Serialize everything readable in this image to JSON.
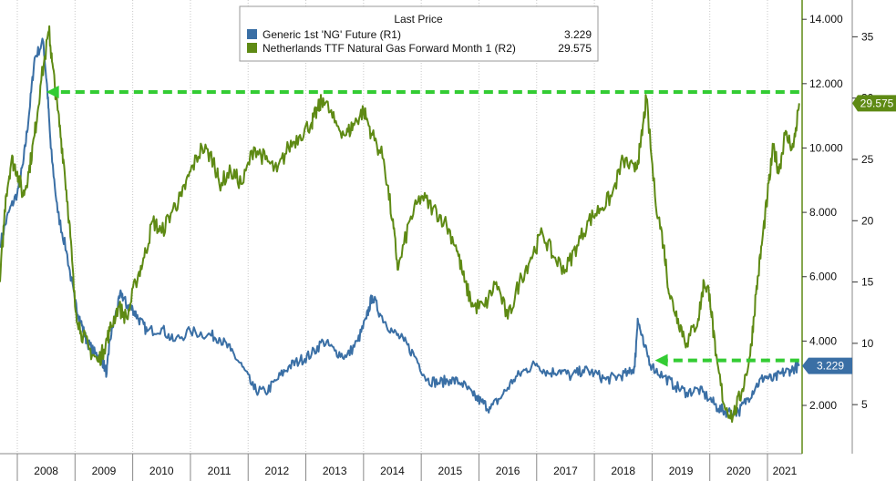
{
  "chart_data": {
    "type": "line",
    "legend": {
      "title": "Last Price",
      "placement": "top-center",
      "entries": [
        {
          "label": "Generic 1st 'NG' Future  (R1)",
          "value": "3.229"
        },
        {
          "label": "Netherlands TTF Natural Gas Forward Month 1  (R2)",
          "value": "29.575"
        }
      ]
    },
    "x_labels": [
      "2008",
      "2009",
      "2010",
      "2011",
      "2012",
      "2013",
      "2014",
      "2015",
      "2016",
      "2017",
      "2018",
      "2019",
      "2020",
      "2021"
    ],
    "x_range": [
      2007.7,
      2021.6
    ],
    "grid": "vertical-only",
    "axes": {
      "r1": {
        "range": [
          0.5,
          14.6
        ],
        "ticks": [
          "14.000",
          "12.000",
          "10.000",
          "8.000",
          "6.000",
          "4.000",
          "2.000"
        ],
        "tick_values": [
          14,
          12,
          10,
          8,
          6,
          4,
          2
        ]
      },
      "r2": {
        "range": [
          1,
          38
        ],
        "ticks": [
          "35",
          "30",
          "25",
          "20",
          "15",
          "10",
          "5"
        ],
        "tick_values": [
          35,
          30,
          25,
          20,
          15,
          10,
          5
        ]
      }
    },
    "series": [
      {
        "name": "Generic 1st 'NG' Future  (R1)",
        "axis": "r1",
        "color": "#3a6fa5",
        "last_label": "3.229",
        "x": [
          2007.7,
          2007.85,
          2008.0,
          2008.1,
          2008.2,
          2008.3,
          2008.45,
          2008.52,
          2008.58,
          2008.7,
          2008.85,
          2009.0,
          2009.1,
          2009.2,
          2009.35,
          2009.45,
          2009.55,
          2009.6,
          2009.7,
          2009.8,
          2009.9,
          2010.0,
          2010.1,
          2010.25,
          2010.5,
          2010.7,
          2011.0,
          2011.3,
          2011.5,
          2011.7,
          2011.9,
          2012.1,
          2012.3,
          2012.5,
          2012.7,
          2012.9,
          2013.1,
          2013.3,
          2013.5,
          2013.7,
          2013.9,
          2014.05,
          2014.15,
          2014.3,
          2014.5,
          2014.7,
          2014.9,
          2015.1,
          2015.3,
          2015.5,
          2015.7,
          2015.9,
          2016.05,
          2016.2,
          2016.4,
          2016.6,
          2016.8,
          2017.0,
          2017.2,
          2017.4,
          2017.6,
          2017.8,
          2018.0,
          2018.2,
          2018.4,
          2018.6,
          2018.7,
          2018.75,
          2018.85,
          2019.0,
          2019.2,
          2019.4,
          2019.6,
          2019.8,
          2020.0,
          2020.15,
          2020.3,
          2020.5,
          2020.65,
          2020.8,
          2020.95,
          2021.1,
          2021.25,
          2021.4,
          2021.55
        ],
        "values": [
          7.0,
          8.0,
          8.6,
          9.5,
          11.0,
          12.8,
          13.3,
          11.8,
          10.0,
          8.0,
          6.8,
          5.2,
          4.6,
          4.0,
          3.6,
          3.5,
          3.0,
          4.0,
          4.8,
          5.5,
          5.1,
          5.0,
          4.7,
          4.3,
          4.4,
          4.0,
          4.3,
          4.2,
          4.1,
          3.7,
          3.2,
          2.5,
          2.4,
          2.8,
          3.2,
          3.4,
          3.6,
          4.0,
          3.7,
          3.5,
          4.0,
          4.7,
          5.4,
          4.8,
          4.3,
          4.0,
          3.5,
          2.8,
          2.7,
          2.8,
          2.7,
          2.3,
          2.1,
          1.9,
          2.3,
          2.8,
          3.1,
          3.3,
          3.0,
          3.1,
          2.9,
          3.1,
          3.0,
          2.8,
          2.9,
          3.0,
          3.2,
          4.7,
          3.9,
          3.2,
          2.9,
          2.6,
          2.4,
          2.5,
          2.2,
          1.9,
          1.8,
          1.8,
          2.2,
          2.6,
          2.9,
          2.8,
          3.0,
          3.1,
          3.229
        ]
      },
      {
        "name": "Netherlands TTF Natural Gas Forward Month 1  (R2)",
        "axis": "r2",
        "color": "#5e8a14",
        "last_label": "29.575",
        "x": [
          2007.7,
          2007.8,
          2007.9,
          2008.0,
          2008.1,
          2008.2,
          2008.3,
          2008.4,
          2008.55,
          2008.6,
          2008.7,
          2008.8,
          2008.9,
          2009.0,
          2009.1,
          2009.25,
          2009.4,
          2009.5,
          2009.6,
          2009.75,
          2009.9,
          2010.05,
          2010.2,
          2010.35,
          2010.5,
          2010.7,
          2010.85,
          2011.0,
          2011.2,
          2011.4,
          2011.5,
          2011.7,
          2011.9,
          2012.1,
          2012.3,
          2012.5,
          2012.7,
          2012.9,
          2013.1,
          2013.2,
          2013.3,
          2013.5,
          2013.7,
          2013.85,
          2014.0,
          2014.15,
          2014.35,
          2014.5,
          2014.6,
          2014.8,
          2015.0,
          2015.2,
          2015.4,
          2015.6,
          2015.75,
          2015.9,
          2016.1,
          2016.3,
          2016.5,
          2016.7,
          2016.9,
          2017.1,
          2017.3,
          2017.5,
          2017.7,
          2017.9,
          2018.1,
          2018.3,
          2018.5,
          2018.7,
          2018.8,
          2018.9,
          2019.05,
          2019.2,
          2019.3,
          2019.45,
          2019.6,
          2019.8,
          2019.9,
          2020.0,
          2020.1,
          2020.25,
          2020.4,
          2020.55,
          2020.7,
          2020.8,
          2020.9,
          2021.0,
          2021.1,
          2021.2,
          2021.3,
          2021.45,
          2021.55
        ],
        "values": [
          15,
          22,
          25,
          24,
          22,
          24,
          27,
          31,
          35.5,
          33,
          29,
          25,
          20,
          13,
          11,
          9.5,
          8.5,
          9.5,
          11,
          13,
          12,
          15,
          17,
          20,
          19,
          21,
          22,
          24,
          26,
          25,
          23,
          24,
          23,
          26,
          25,
          24,
          26,
          27,
          28,
          29,
          30,
          28,
          27,
          28,
          29,
          27,
          25,
          20,
          16,
          20,
          22,
          21,
          20,
          18,
          15,
          13,
          13,
          15,
          12,
          15,
          17,
          19,
          17,
          16,
          18,
          20,
          21,
          22,
          25,
          24,
          26,
          30,
          22,
          18,
          14,
          12,
          10,
          12,
          15,
          14,
          9,
          5,
          4,
          6,
          9,
          14,
          18,
          22,
          26,
          24,
          27,
          26,
          29.575
        ]
      }
    ],
    "annotations": [
      {
        "type": "dashed-arrow",
        "color": "#33cc33",
        "from_x": 2021.55,
        "to_x": 2008.5,
        "axis": "r2",
        "y": 30.5
      },
      {
        "type": "dashed-arrow",
        "color": "#33cc33",
        "from_x": 2021.55,
        "to_x": 2019.05,
        "axis": "r1",
        "y": 3.4
      }
    ]
  }
}
